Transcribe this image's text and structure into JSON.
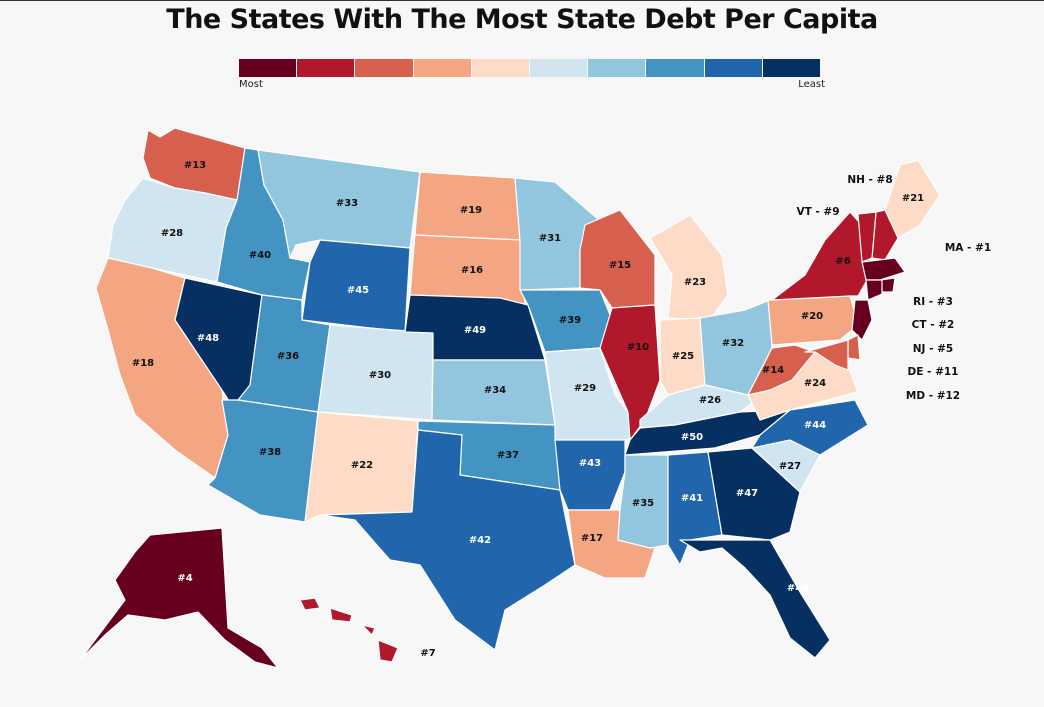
{
  "title": "The States With The Most State Debt Per Capita",
  "legend": {
    "most_label": "Most",
    "least_label": "Least",
    "colors": [
      "#67001f",
      "#b2182b",
      "#d6604d",
      "#f4a582",
      "#fddbc7",
      "#d1e5f0",
      "#92c5de",
      "#4393c3",
      "#2166ac",
      "#053061"
    ]
  },
  "states": [
    {
      "id": "WA",
      "rank": "#13",
      "color": "#d6604d"
    },
    {
      "id": "OR",
      "rank": "#28",
      "color": "#d1e5f0"
    },
    {
      "id": "CA",
      "rank": "#18",
      "color": "#f4a582"
    },
    {
      "id": "ID",
      "rank": "#40",
      "color": "#4393c3"
    },
    {
      "id": "NV",
      "rank": "#48",
      "color": "#053061"
    },
    {
      "id": "MT",
      "rank": "#33",
      "color": "#92c5de"
    },
    {
      "id": "WY",
      "rank": "#45",
      "color": "#2166ac"
    },
    {
      "id": "UT",
      "rank": "#36",
      "color": "#4393c3"
    },
    {
      "id": "AZ",
      "rank": "#38",
      "color": "#4393c3"
    },
    {
      "id": "CO",
      "rank": "#30",
      "color": "#d1e5f0"
    },
    {
      "id": "NM",
      "rank": "#22",
      "color": "#fddbc7"
    },
    {
      "id": "ND",
      "rank": "#19",
      "color": "#f4a582"
    },
    {
      "id": "SD",
      "rank": "#16",
      "color": "#f4a582"
    },
    {
      "id": "NE",
      "rank": "#49",
      "color": "#053061"
    },
    {
      "id": "KS",
      "rank": "#34",
      "color": "#92c5de"
    },
    {
      "id": "OK",
      "rank": "#37",
      "color": "#4393c3"
    },
    {
      "id": "TX",
      "rank": "#42",
      "color": "#2166ac"
    },
    {
      "id": "MN",
      "rank": "#31",
      "color": "#92c5de"
    },
    {
      "id": "IA",
      "rank": "#39",
      "color": "#4393c3"
    },
    {
      "id": "MO",
      "rank": "#29",
      "color": "#d1e5f0"
    },
    {
      "id": "AR",
      "rank": "#43",
      "color": "#2166ac"
    },
    {
      "id": "LA",
      "rank": "#17",
      "color": "#f4a582"
    },
    {
      "id": "WI",
      "rank": "#15",
      "color": "#d6604d"
    },
    {
      "id": "IL",
      "rank": "#10",
      "color": "#b2182b"
    },
    {
      "id": "MI",
      "rank": "#23",
      "color": "#fddbc7"
    },
    {
      "id": "IN",
      "rank": "#25",
      "color": "#fddbc7"
    },
    {
      "id": "OH",
      "rank": "#32",
      "color": "#92c5de"
    },
    {
      "id": "KY",
      "rank": "#26",
      "color": "#d1e5f0"
    },
    {
      "id": "TN",
      "rank": "#50",
      "color": "#053061"
    },
    {
      "id": "MS",
      "rank": "#35",
      "color": "#92c5de"
    },
    {
      "id": "AL",
      "rank": "#41",
      "color": "#2166ac"
    },
    {
      "id": "GA",
      "rank": "#47",
      "color": "#053061"
    },
    {
      "id": "FL",
      "rank": "#46",
      "color": "#053061"
    },
    {
      "id": "SC",
      "rank": "#27",
      "color": "#d1e5f0"
    },
    {
      "id": "NC",
      "rank": "#44",
      "color": "#2166ac"
    },
    {
      "id": "VA",
      "rank": "#24",
      "color": "#fddbc7"
    },
    {
      "id": "WV",
      "rank": "#14",
      "color": "#d6604d"
    },
    {
      "id": "PA",
      "rank": "#20",
      "color": "#f4a582"
    },
    {
      "id": "NY",
      "rank": "#6",
      "color": "#b2182b"
    },
    {
      "id": "ME",
      "rank": "#21",
      "color": "#fddbc7"
    },
    {
      "id": "NH",
      "rank": "",
      "color": "#b2182b"
    },
    {
      "id": "VT",
      "rank": "",
      "color": "#b2182b"
    },
    {
      "id": "MA",
      "rank": "",
      "color": "#67001f"
    },
    {
      "id": "RI",
      "rank": "",
      "color": "#67001f"
    },
    {
      "id": "CT",
      "rank": "",
      "color": "#67001f"
    },
    {
      "id": "NJ",
      "rank": "",
      "color": "#67001f"
    },
    {
      "id": "DE",
      "rank": "",
      "color": "#d6604d"
    },
    {
      "id": "MD",
      "rank": "",
      "color": "#d6604d"
    },
    {
      "id": "AK",
      "rank": "#4",
      "color": "#67001f"
    },
    {
      "id": "HI",
      "rank": "#7",
      "color": "#b2182b"
    }
  ],
  "callouts": [
    {
      "id": "NH",
      "text": "NH - #8"
    },
    {
      "id": "VT",
      "text": "VT - #9"
    },
    {
      "id": "MA",
      "text": "MA - #1"
    },
    {
      "id": "RI",
      "text": "RI - #3"
    },
    {
      "id": "CT",
      "text": "CT - #2"
    },
    {
      "id": "NJ",
      "text": "NJ - #5"
    },
    {
      "id": "DE",
      "text": "DE - #11"
    },
    {
      "id": "MD",
      "text": "MD - #12"
    }
  ]
}
